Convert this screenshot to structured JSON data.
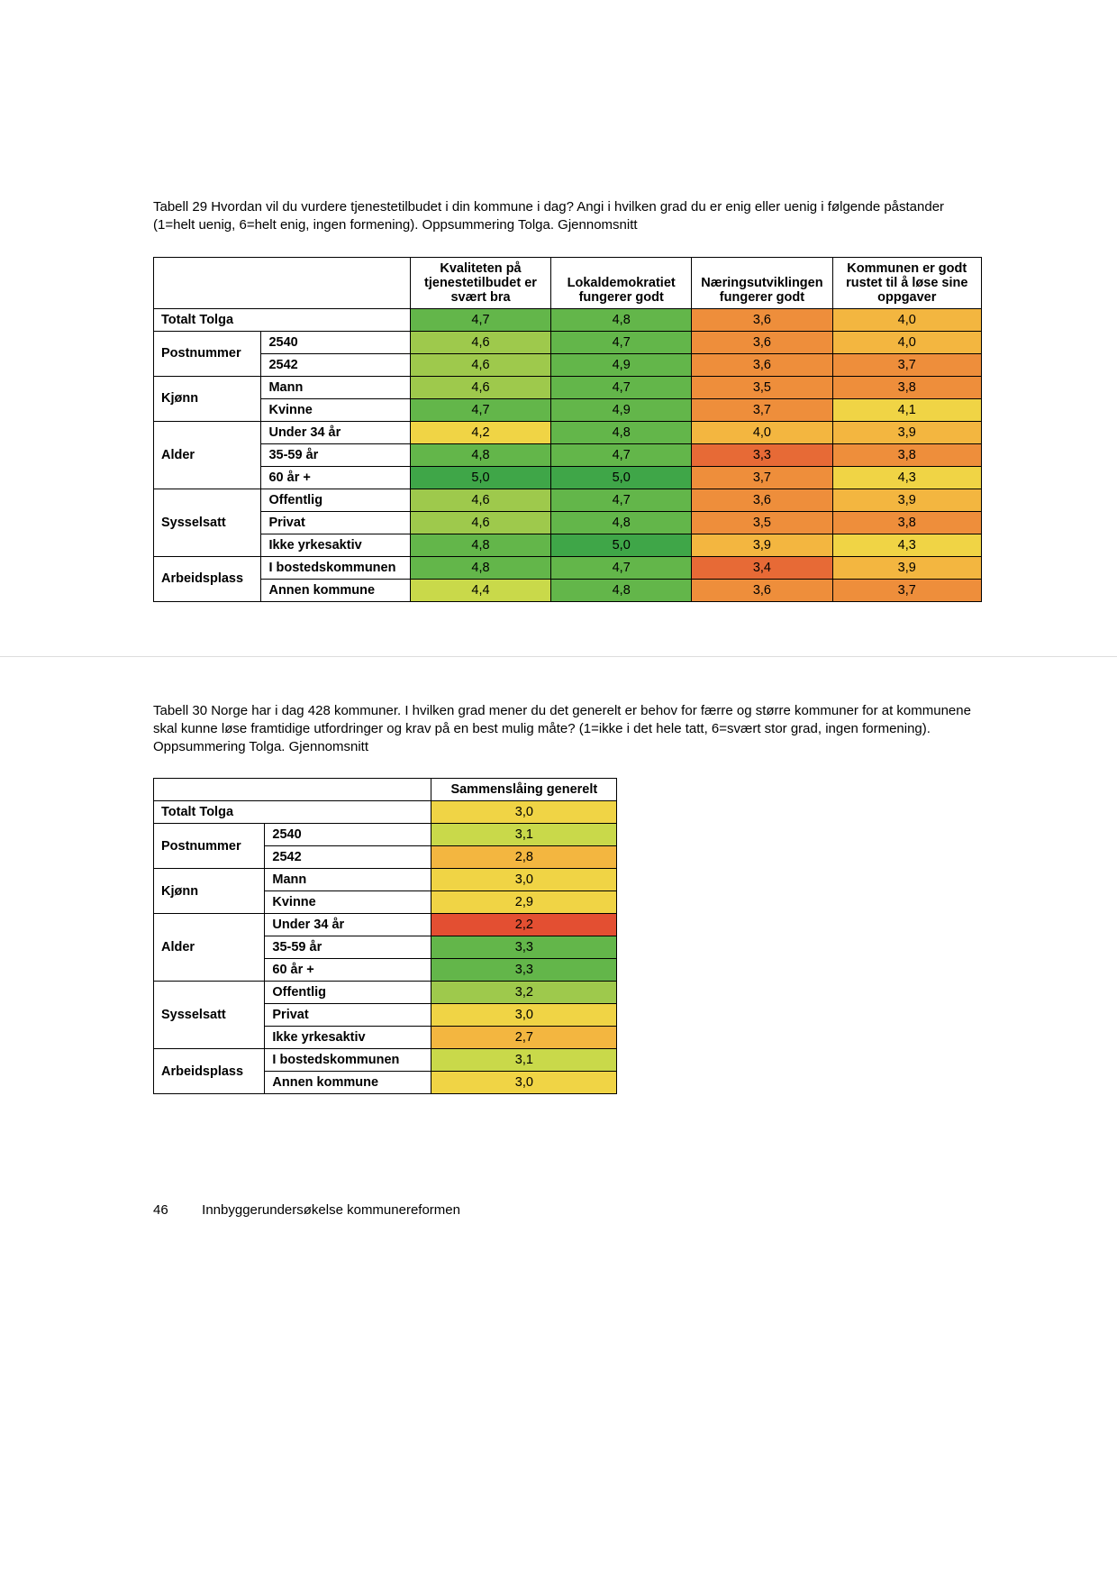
{
  "colors": {
    "green_dark": "#3fa648",
    "green_mid": "#63b64a",
    "green_yellow": "#9ec94c",
    "yellow_green": "#c9d94a",
    "yellow": "#f0d445",
    "yellow_orange": "#f3b640",
    "orange": "#ee8e3b",
    "orange_red": "#e76a36",
    "red": "#e34f32"
  },
  "table29": {
    "caption": "Tabell 29 Hvordan vil du vurdere tjenestetilbudet i din kommune i dag? Angi i hvilken grad du er enig eller uenig i følgende påstander (1=helt uenig, 6=helt enig, ingen formening). Oppsummering Tolga. Gjennomsnitt",
    "col_headers": [
      "",
      "",
      "Kvaliteten på tjenestetilbudet er svært bra",
      "Lokaldemokratiet fungerer godt",
      "Næringsutviklingen fungerer godt",
      "Kommunen er godt rustet til å løse sine oppgaver"
    ],
    "groups": [
      {
        "label": "Totalt Tolga",
        "span": 2,
        "rows": [
          {
            "sub": "",
            "vals": [
              {
                "v": "4,7",
                "c": "green_mid"
              },
              {
                "v": "4,8",
                "c": "green_mid"
              },
              {
                "v": "3,6",
                "c": "orange"
              },
              {
                "v": "4,0",
                "c": "yellow_orange"
              }
            ]
          }
        ]
      },
      {
        "label": "Postnummer",
        "rows": [
          {
            "sub": "2540",
            "vals": [
              {
                "v": "4,6",
                "c": "green_yellow"
              },
              {
                "v": "4,7",
                "c": "green_mid"
              },
              {
                "v": "3,6",
                "c": "orange"
              },
              {
                "v": "4,0",
                "c": "yellow_orange"
              }
            ]
          },
          {
            "sub": "2542",
            "vals": [
              {
                "v": "4,6",
                "c": "green_yellow"
              },
              {
                "v": "4,9",
                "c": "green_mid"
              },
              {
                "v": "3,6",
                "c": "orange"
              },
              {
                "v": "3,7",
                "c": "orange"
              }
            ]
          }
        ]
      },
      {
        "label": "Kjønn",
        "rows": [
          {
            "sub": "Mann",
            "vals": [
              {
                "v": "4,6",
                "c": "green_yellow"
              },
              {
                "v": "4,7",
                "c": "green_mid"
              },
              {
                "v": "3,5",
                "c": "orange"
              },
              {
                "v": "3,8",
                "c": "orange"
              }
            ]
          },
          {
            "sub": "Kvinne",
            "vals": [
              {
                "v": "4,7",
                "c": "green_mid"
              },
              {
                "v": "4,9",
                "c": "green_mid"
              },
              {
                "v": "3,7",
                "c": "orange"
              },
              {
                "v": "4,1",
                "c": "yellow"
              }
            ]
          }
        ]
      },
      {
        "label": "Alder",
        "rows": [
          {
            "sub": "Under 34 år",
            "vals": [
              {
                "v": "4,2",
                "c": "yellow"
              },
              {
                "v": "4,8",
                "c": "green_mid"
              },
              {
                "v": "4,0",
                "c": "yellow_orange"
              },
              {
                "v": "3,9",
                "c": "yellow_orange"
              }
            ]
          },
          {
            "sub": "35-59 år",
            "vals": [
              {
                "v": "4,8",
                "c": "green_mid"
              },
              {
                "v": "4,7",
                "c": "green_mid"
              },
              {
                "v": "3,3",
                "c": "orange_red"
              },
              {
                "v": "3,8",
                "c": "orange"
              }
            ]
          },
          {
            "sub": "60 år +",
            "vals": [
              {
                "v": "5,0",
                "c": "green_dark"
              },
              {
                "v": "5,0",
                "c": "green_dark"
              },
              {
                "v": "3,7",
                "c": "orange"
              },
              {
                "v": "4,3",
                "c": "yellow"
              }
            ]
          }
        ]
      },
      {
        "label": "Sysselsatt",
        "rows": [
          {
            "sub": "Offentlig",
            "vals": [
              {
                "v": "4,6",
                "c": "green_yellow"
              },
              {
                "v": "4,7",
                "c": "green_mid"
              },
              {
                "v": "3,6",
                "c": "orange"
              },
              {
                "v": "3,9",
                "c": "yellow_orange"
              }
            ]
          },
          {
            "sub": "Privat",
            "vals": [
              {
                "v": "4,6",
                "c": "green_yellow"
              },
              {
                "v": "4,8",
                "c": "green_mid"
              },
              {
                "v": "3,5",
                "c": "orange"
              },
              {
                "v": "3,8",
                "c": "orange"
              }
            ]
          },
          {
            "sub": "Ikke yrkesaktiv",
            "vals": [
              {
                "v": "4,8",
                "c": "green_mid"
              },
              {
                "v": "5,0",
                "c": "green_dark"
              },
              {
                "v": "3,9",
                "c": "yellow_orange"
              },
              {
                "v": "4,3",
                "c": "yellow"
              }
            ]
          }
        ]
      },
      {
        "label": "Arbeidsplass",
        "rows": [
          {
            "sub": "I bostedskommunen",
            "vals": [
              {
                "v": "4,8",
                "c": "green_mid"
              },
              {
                "v": "4,7",
                "c": "green_mid"
              },
              {
                "v": "3,4",
                "c": "orange_red"
              },
              {
                "v": "3,9",
                "c": "yellow_orange"
              }
            ]
          },
          {
            "sub": "Annen kommune",
            "vals": [
              {
                "v": "4,4",
                "c": "yellow_green"
              },
              {
                "v": "4,8",
                "c": "green_mid"
              },
              {
                "v": "3,6",
                "c": "orange"
              },
              {
                "v": "3,7",
                "c": "orange"
              }
            ]
          }
        ]
      }
    ]
  },
  "table30": {
    "caption": "Tabell 30 Norge har i dag 428 kommuner. I hvilken grad mener du det generelt er behov for færre og større kommuner for at kommunene skal kunne løse framtidige utfordringer og krav på en best mulig måte? (1=ikke i det hele tatt, 6=svært stor grad, ingen formening). Oppsummering Tolga. Gjennomsnitt",
    "col_headers": [
      "",
      "",
      "Sammenslåing generelt"
    ],
    "groups": [
      {
        "label": "Totalt Tolga",
        "span": 2,
        "rows": [
          {
            "sub": "",
            "vals": [
              {
                "v": "3,0",
                "c": "yellow"
              }
            ]
          }
        ]
      },
      {
        "label": "Postnummer",
        "rows": [
          {
            "sub": "2540",
            "vals": [
              {
                "v": "3,1",
                "c": "yellow_green"
              }
            ]
          },
          {
            "sub": "2542",
            "vals": [
              {
                "v": "2,8",
                "c": "yellow_orange"
              }
            ]
          }
        ]
      },
      {
        "label": "Kjønn",
        "rows": [
          {
            "sub": "Mann",
            "vals": [
              {
                "v": "3,0",
                "c": "yellow"
              }
            ]
          },
          {
            "sub": "Kvinne",
            "vals": [
              {
                "v": "2,9",
                "c": "yellow"
              }
            ]
          }
        ]
      },
      {
        "label": "Alder",
        "rows": [
          {
            "sub": "Under 34 år",
            "vals": [
              {
                "v": "2,2",
                "c": "red"
              }
            ]
          },
          {
            "sub": "35-59 år",
            "vals": [
              {
                "v": "3,3",
                "c": "green_mid"
              }
            ]
          },
          {
            "sub": "60 år +",
            "vals": [
              {
                "v": "3,3",
                "c": "green_mid"
              }
            ]
          }
        ]
      },
      {
        "label": "Sysselsatt",
        "rows": [
          {
            "sub": "Offentlig",
            "vals": [
              {
                "v": "3,2",
                "c": "green_yellow"
              }
            ]
          },
          {
            "sub": "Privat",
            "vals": [
              {
                "v": "3,0",
                "c": "yellow"
              }
            ]
          },
          {
            "sub": "Ikke yrkesaktiv",
            "vals": [
              {
                "v": "2,7",
                "c": "yellow_orange"
              }
            ]
          }
        ]
      },
      {
        "label": "Arbeidsplass",
        "rows": [
          {
            "sub": "I bostedskommunen",
            "vals": [
              {
                "v": "3,1",
                "c": "yellow_green"
              }
            ]
          },
          {
            "sub": "Annen kommune",
            "vals": [
              {
                "v": "3,0",
                "c": "yellow"
              }
            ]
          }
        ]
      }
    ]
  },
  "footer": {
    "page_number": "46",
    "title": "Innbyggerundersøkelse kommunereformen"
  }
}
